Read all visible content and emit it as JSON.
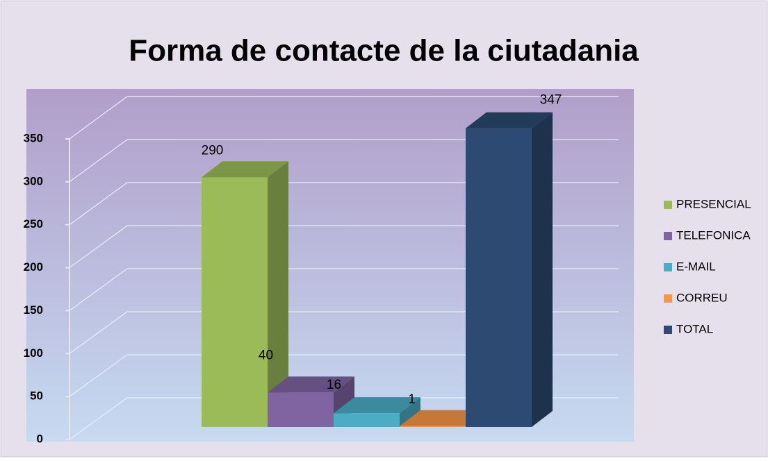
{
  "chart_data": {
    "type": "bar3d",
    "title": "Forma de contacte de la ciutadania",
    "series": [
      {
        "name": "PRESENCIAL",
        "color": "#9bbb59",
        "values": [
          290
        ]
      },
      {
        "name": "TELEFONICA",
        "color": "#8064a2",
        "values": [
          40
        ]
      },
      {
        "name": "E-MAIL",
        "color": "#4bacc6",
        "values": [
          16
        ]
      },
      {
        "name": "CORREU",
        "color": "#f79646",
        "values": [
          1
        ]
      },
      {
        "name": "TOTAL",
        "color": "#2c4a72",
        "values": [
          347
        ]
      }
    ],
    "ylim": [
      0,
      350
    ],
    "yticks": [
      0,
      50,
      100,
      150,
      200,
      250,
      300,
      350
    ],
    "grid": true,
    "legend": "right"
  }
}
